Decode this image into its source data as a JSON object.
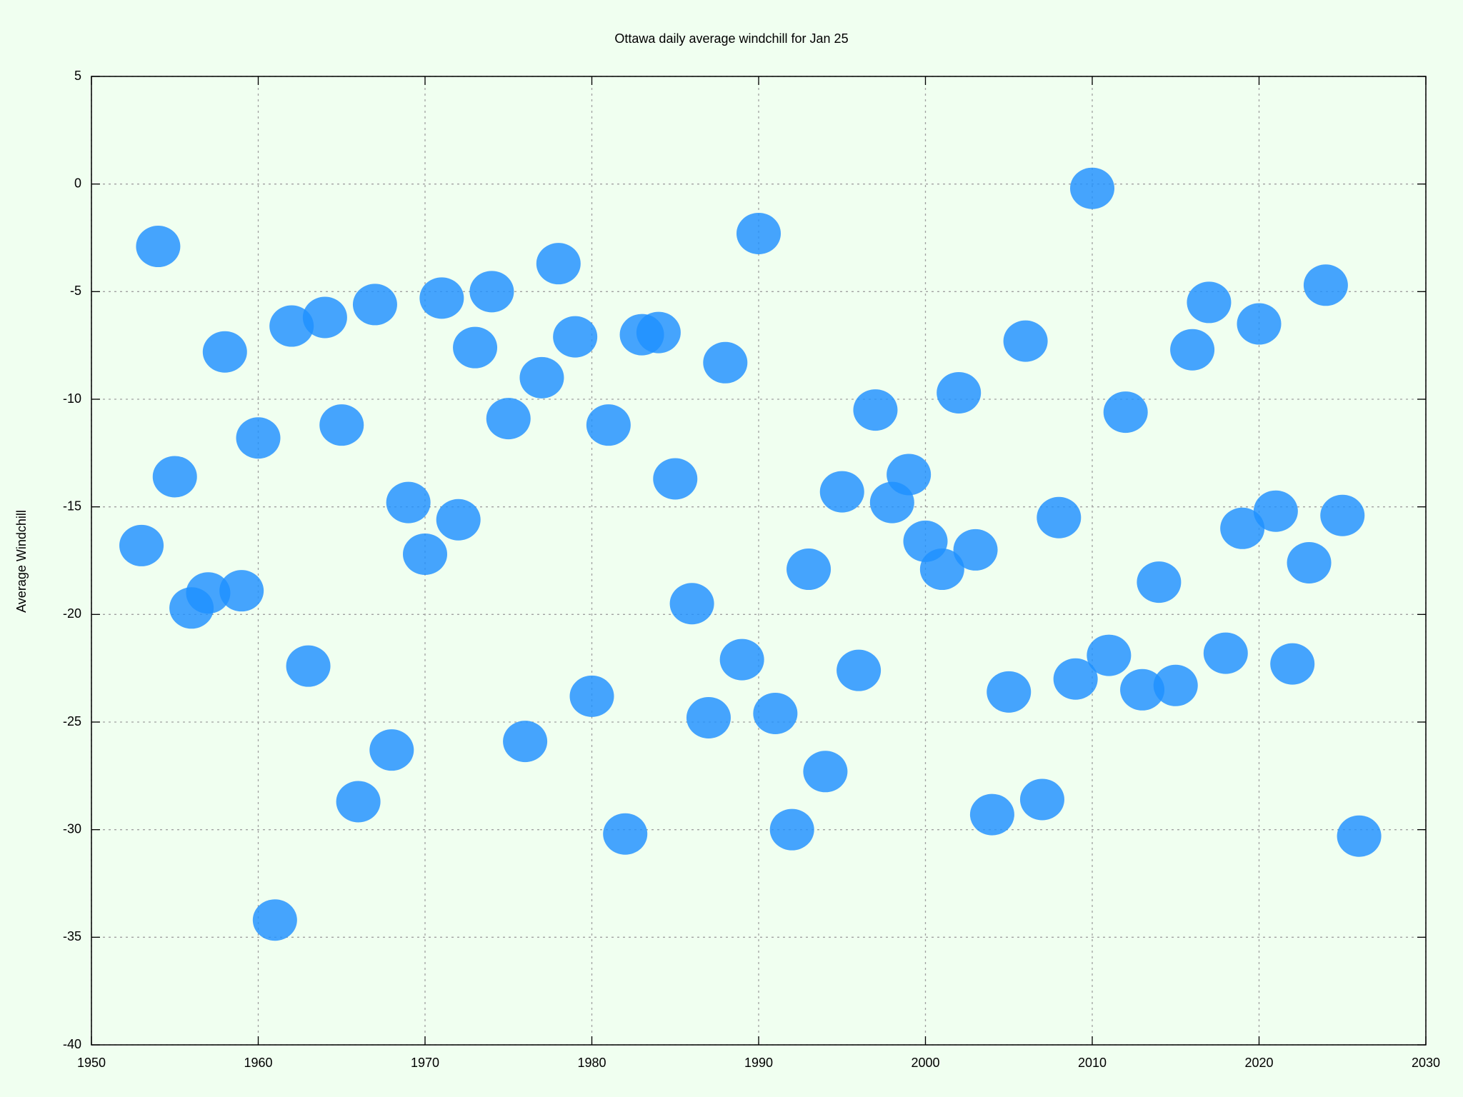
{
  "chart_data": {
    "type": "scatter",
    "title": "Ottawa daily average windchill for Jan 25",
    "y_label": "Average Windchill",
    "x": [
      1953,
      1954,
      1955,
      1956,
      1957,
      1958,
      1959,
      1960,
      1961,
      1962,
      1963,
      1964,
      1965,
      1966,
      1967,
      1968,
      1969,
      1970,
      1971,
      1972,
      1973,
      1974,
      1975,
      1976,
      1977,
      1978,
      1979,
      1980,
      1981,
      1982,
      1983,
      1984,
      1985,
      1986,
      1987,
      1988,
      1989,
      1990,
      1991,
      1992,
      1993,
      1994,
      1995,
      1996,
      1997,
      1998,
      1999,
      2000,
      2001,
      2002,
      2003,
      2004,
      2005,
      2006,
      2007,
      2008,
      2009,
      2010,
      2011,
      2012,
      2013,
      2014,
      2015,
      2016,
      2017,
      2018,
      2019,
      2020,
      2021,
      2022,
      2023,
      2024,
      2025,
      2026
    ],
    "values": [
      -16.8,
      -2.9,
      -13.6,
      -19.7,
      -19.0,
      -7.8,
      -18.9,
      -11.8,
      -34.2,
      -6.6,
      -22.4,
      -6.2,
      -11.2,
      -28.7,
      -5.6,
      -26.3,
      -14.8,
      -17.2,
      -5.3,
      -15.6,
      -7.6,
      -5.0,
      -10.9,
      -25.9,
      -9.0,
      -3.7,
      -7.1,
      -23.8,
      -11.2,
      -30.2,
      -7.0,
      -6.9,
      -13.7,
      -19.5,
      -24.8,
      -8.3,
      -22.1,
      -2.3,
      -24.6,
      -30.0,
      -17.9,
      -27.3,
      -14.3,
      -22.6,
      -10.5,
      -14.8,
      -13.5,
      -16.6,
      -17.9,
      -9.7,
      -17.0,
      -29.3,
      -23.6,
      -7.3,
      -28.6,
      -15.5,
      -23.0,
      -0.2,
      -21.9,
      -10.6,
      -23.5,
      -18.5,
      -23.3,
      -7.7,
      -5.5,
      -21.8,
      -16.0,
      -6.5,
      -15.2,
      -22.3,
      -17.6,
      -4.7,
      -15.4,
      -30.3
    ],
    "color": "#1e90ff",
    "xlim": [
      1950,
      2030
    ],
    "xticks": [
      1950,
      1960,
      1970,
      1980,
      1990,
      2000,
      2010,
      2020,
      2030
    ],
    "ylim": [
      -40,
      5
    ],
    "yticks": [
      -40,
      -35,
      -30,
      -25,
      -20,
      -15,
      -10,
      -5,
      0,
      5
    ],
    "grid": true
  }
}
